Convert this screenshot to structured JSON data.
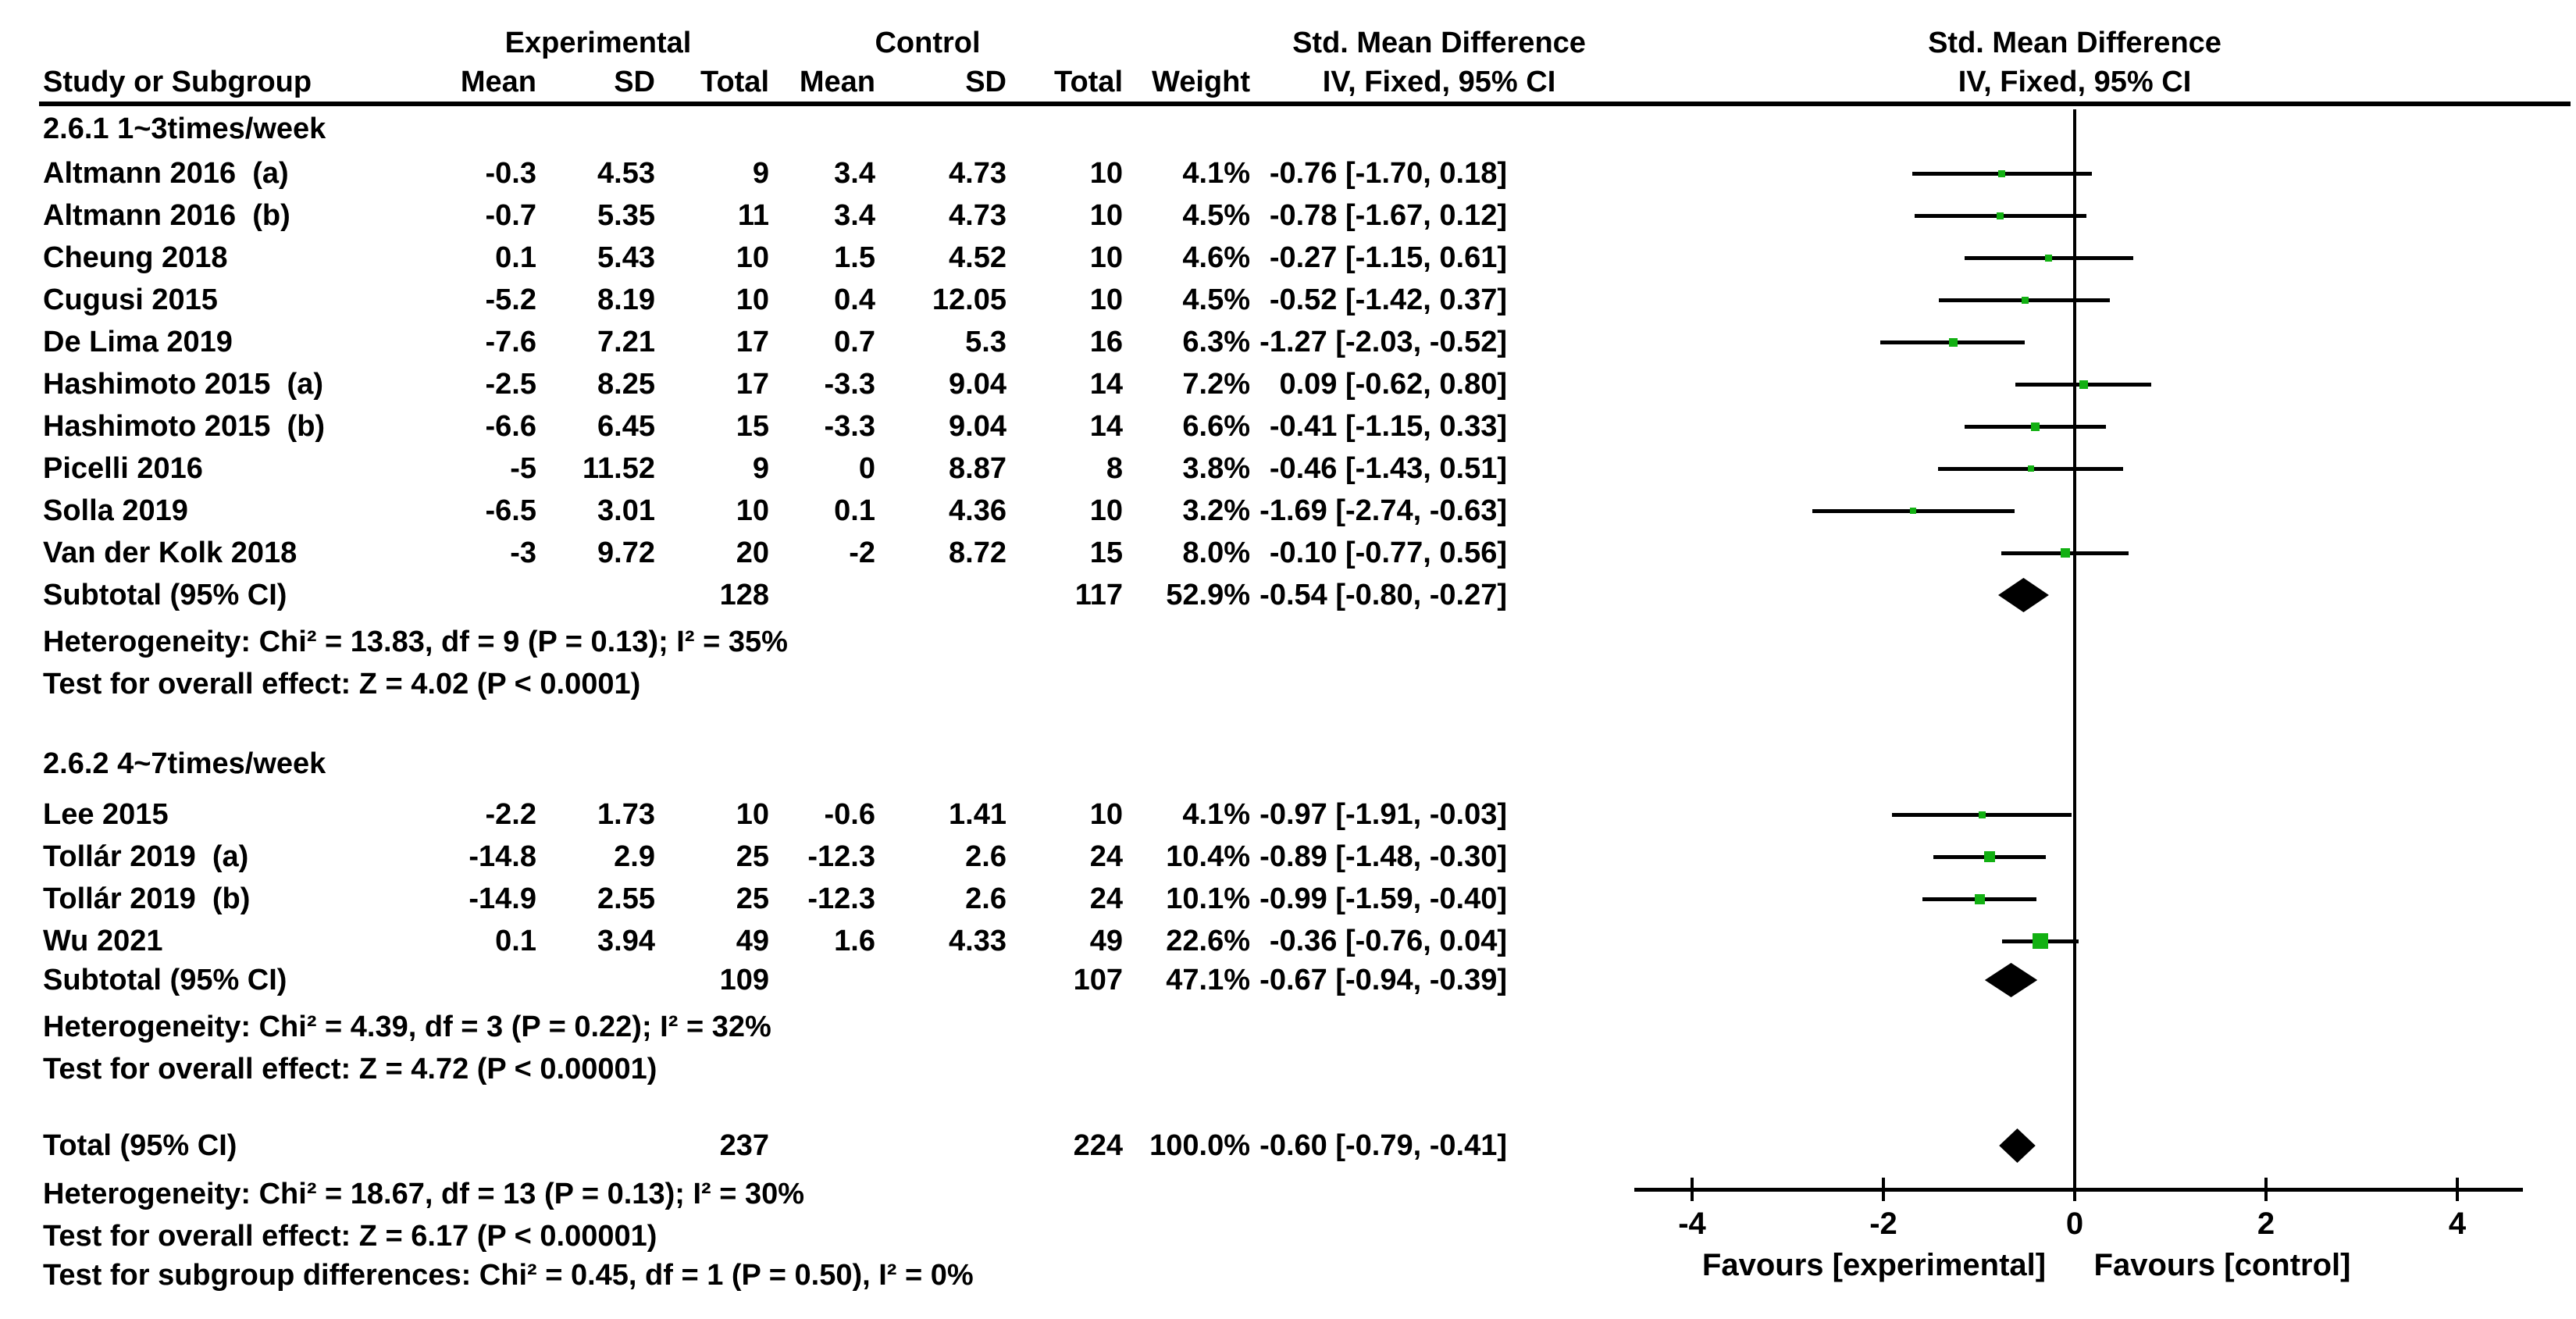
{
  "chart_data": {
    "type": "forest",
    "effect_measure": "Std. Mean Difference",
    "method": "IV, Fixed, 95% CI",
    "marker_color": "#12b012",
    "diamond_color": "#000000",
    "title_row": {
      "experimental": "Experimental",
      "control": "Control",
      "smd_text": "Std. Mean Difference",
      "smd_plot": "Std. Mean Difference"
    },
    "col_headers": {
      "study": "Study or Subgroup",
      "exp_mean": "Mean",
      "exp_sd": "SD",
      "exp_total": "Total",
      "ctl_mean": "Mean",
      "ctl_sd": "SD",
      "ctl_total": "Total",
      "weight": "Weight",
      "iv_text": "IV, Fixed, 95% CI",
      "iv_plot": "IV, Fixed, 95% CI"
    },
    "axis": {
      "ticks": [
        -4,
        -2,
        0,
        2,
        4
      ],
      "xlim": [
        -4.6,
        4.6
      ],
      "favours_left": "Favours [experimental]",
      "favours_right": "Favours [control]"
    },
    "groups": [
      {
        "label": "2.6.1 1~3times/week",
        "studies": [
          {
            "name": "Altmann 2016  (a)",
            "exp_mean": "-0.3",
            "exp_sd": "4.53",
            "exp_total": "9",
            "ctl_mean": "3.4",
            "ctl_sd": "4.73",
            "ctl_total": "10",
            "weight": "4.1%",
            "ci_text": "-0.76 [-1.70, 0.18]",
            "est": -0.76,
            "lo": -1.7,
            "hi": 0.18,
            "weight_val": 4.1
          },
          {
            "name": "Altmann 2016  (b)",
            "exp_mean": "-0.7",
            "exp_sd": "5.35",
            "exp_total": "11",
            "ctl_mean": "3.4",
            "ctl_sd": "4.73",
            "ctl_total": "10",
            "weight": "4.5%",
            "ci_text": "-0.78 [-1.67, 0.12]",
            "est": -0.78,
            "lo": -1.67,
            "hi": 0.12,
            "weight_val": 4.5
          },
          {
            "name": "Cheung 2018",
            "exp_mean": "0.1",
            "exp_sd": "5.43",
            "exp_total": "10",
            "ctl_mean": "1.5",
            "ctl_sd": "4.52",
            "ctl_total": "10",
            "weight": "4.6%",
            "ci_text": "-0.27 [-1.15, 0.61]",
            "est": -0.27,
            "lo": -1.15,
            "hi": 0.61,
            "weight_val": 4.6
          },
          {
            "name": "Cugusi 2015",
            "exp_mean": "-5.2",
            "exp_sd": "8.19",
            "exp_total": "10",
            "ctl_mean": "0.4",
            "ctl_sd": "12.05",
            "ctl_total": "10",
            "weight": "4.5%",
            "ci_text": "-0.52 [-1.42, 0.37]",
            "est": -0.52,
            "lo": -1.42,
            "hi": 0.37,
            "weight_val": 4.5
          },
          {
            "name": "De Lima 2019",
            "exp_mean": "-7.6",
            "exp_sd": "7.21",
            "exp_total": "17",
            "ctl_mean": "0.7",
            "ctl_sd": "5.3",
            "ctl_total": "16",
            "weight": "6.3%",
            "ci_text": "-1.27 [-2.03, -0.52]",
            "est": -1.27,
            "lo": -2.03,
            "hi": -0.52,
            "weight_val": 6.3
          },
          {
            "name": "Hashimoto 2015  (a)",
            "exp_mean": "-2.5",
            "exp_sd": "8.25",
            "exp_total": "17",
            "ctl_mean": "-3.3",
            "ctl_sd": "9.04",
            "ctl_total": "14",
            "weight": "7.2%",
            "ci_text": "0.09 [-0.62, 0.80]",
            "est": 0.09,
            "lo": -0.62,
            "hi": 0.8,
            "weight_val": 7.2
          },
          {
            "name": "Hashimoto 2015  (b)",
            "exp_mean": "-6.6",
            "exp_sd": "6.45",
            "exp_total": "15",
            "ctl_mean": "-3.3",
            "ctl_sd": "9.04",
            "ctl_total": "14",
            "weight": "6.6%",
            "ci_text": "-0.41 [-1.15, 0.33]",
            "est": -0.41,
            "lo": -1.15,
            "hi": 0.33,
            "weight_val": 6.6
          },
          {
            "name": "Picelli 2016",
            "exp_mean": "-5",
            "exp_sd": "11.52",
            "exp_total": "9",
            "ctl_mean": "0",
            "ctl_sd": "8.87",
            "ctl_total": "8",
            "weight": "3.8%",
            "ci_text": "-0.46 [-1.43, 0.51]",
            "est": -0.46,
            "lo": -1.43,
            "hi": 0.51,
            "weight_val": 3.8
          },
          {
            "name": "Solla 2019",
            "exp_mean": "-6.5",
            "exp_sd": "3.01",
            "exp_total": "10",
            "ctl_mean": "0.1",
            "ctl_sd": "4.36",
            "ctl_total": "10",
            "weight": "3.2%",
            "ci_text": "-1.69 [-2.74, -0.63]",
            "est": -1.69,
            "lo": -2.74,
            "hi": -0.63,
            "weight_val": 3.2
          },
          {
            "name": "Van der Kolk 2018",
            "exp_mean": "-3",
            "exp_sd": "9.72",
            "exp_total": "20",
            "ctl_mean": "-2",
            "ctl_sd": "8.72",
            "ctl_total": "15",
            "weight": "8.0%",
            "ci_text": "-0.10 [-0.77, 0.56]",
            "est": -0.1,
            "lo": -0.77,
            "hi": 0.56,
            "weight_val": 8.0
          }
        ],
        "subtotal": {
          "label": "Subtotal (95% CI)",
          "exp_total": "128",
          "ctl_total": "117",
          "weight": "52.9%",
          "ci_text": "-0.54 [-0.80, -0.27]",
          "lo": -0.8,
          "hi": -0.27
        },
        "heterogeneity": "Heterogeneity: Chi² = 13.83, df = 9 (P = 0.13); I² = 35%",
        "overall_effect": "Test for overall effect: Z = 4.02 (P < 0.0001)"
      },
      {
        "label": "2.6.2 4~7times/week",
        "studies": [
          {
            "name": "Lee 2015",
            "exp_mean": "-2.2",
            "exp_sd": "1.73",
            "exp_total": "10",
            "ctl_mean": "-0.6",
            "ctl_sd": "1.41",
            "ctl_total": "10",
            "weight": "4.1%",
            "ci_text": "-0.97 [-1.91, -0.03]",
            "est": -0.97,
            "lo": -1.91,
            "hi": -0.03,
            "weight_val": 4.1
          },
          {
            "name": "Tollár 2019  (a)",
            "exp_mean": "-14.8",
            "exp_sd": "2.9",
            "exp_total": "25",
            "ctl_mean": "-12.3",
            "ctl_sd": "2.6",
            "ctl_total": "24",
            "weight": "10.4%",
            "ci_text": "-0.89 [-1.48, -0.30]",
            "est": -0.89,
            "lo": -1.48,
            "hi": -0.3,
            "weight_val": 10.4
          },
          {
            "name": "Tollár 2019  (b)",
            "exp_mean": "-14.9",
            "exp_sd": "2.55",
            "exp_total": "25",
            "ctl_mean": "-12.3",
            "ctl_sd": "2.6",
            "ctl_total": "24",
            "weight": "10.1%",
            "ci_text": "-0.99 [-1.59, -0.40]",
            "est": -0.99,
            "lo": -1.59,
            "hi": -0.4,
            "weight_val": 10.1
          },
          {
            "name": "Wu 2021",
            "exp_mean": "0.1",
            "exp_sd": "3.94",
            "exp_total": "49",
            "ctl_mean": "1.6",
            "ctl_sd": "4.33",
            "ctl_total": "49",
            "weight": "22.6%",
            "ci_text": "-0.36 [-0.76, 0.04]",
            "est": -0.36,
            "lo": -0.76,
            "hi": 0.04,
            "weight_val": 22.6
          }
        ],
        "subtotal": {
          "label": "Subtotal (95% CI)",
          "exp_total": "109",
          "ctl_total": "107",
          "weight": "47.1%",
          "ci_text": "-0.67 [-0.94, -0.39]",
          "lo": -0.94,
          "hi": -0.39
        },
        "heterogeneity": "Heterogeneity: Chi² = 4.39, df = 3 (P = 0.22); I² = 32%",
        "overall_effect": "Test for overall effect: Z = 4.72 (P < 0.00001)"
      }
    ],
    "total": {
      "label": "Total (95% CI)",
      "exp_total": "237",
      "ctl_total": "224",
      "weight": "100.0%",
      "ci_text": "-0.60 [-0.79, -0.41]",
      "lo": -0.79,
      "hi": -0.41
    },
    "total_heterogeneity": "Heterogeneity: Chi² = 18.67, df = 13 (P = 0.13); I² = 30%",
    "total_overall_effect": "Test for overall effect: Z = 6.17 (P < 0.00001)",
    "subgroup_differences": "Test for subgroup differences: Chi² = 0.45, df = 1 (P = 0.50), I² = 0%"
  }
}
